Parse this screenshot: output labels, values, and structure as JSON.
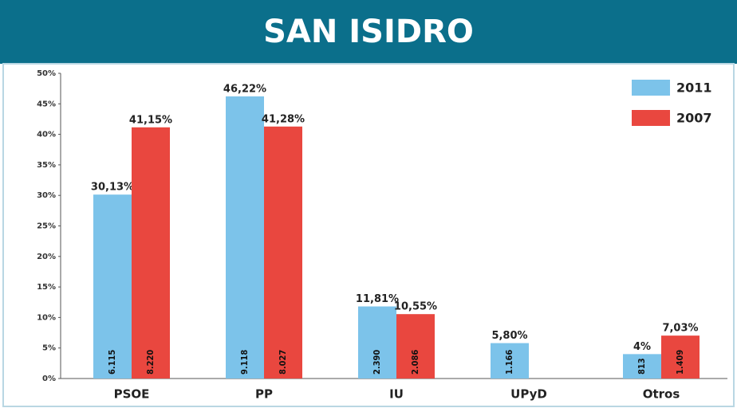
{
  "chart_data": {
    "type": "bar",
    "title": "SAN ISIDRO",
    "categories": [
      "PSOE",
      "PP",
      "IU",
      "UPyD",
      "Otros"
    ],
    "series": [
      {
        "name": "2011",
        "color": "#7cc3ea",
        "values": [
          30.13,
          46.22,
          11.81,
          5.8,
          4
        ],
        "value_labels": [
          "30,13%",
          "46,22%",
          "11,81%",
          "5,80%",
          "4%"
        ],
        "votes": [
          6115,
          9118,
          2390,
          1166,
          813
        ],
        "vote_labels": [
          "6.115",
          "9.118",
          "2.390",
          "1.166",
          "813"
        ]
      },
      {
        "name": "2007",
        "color": "#e9473f",
        "values": [
          41.15,
          41.28,
          10.55,
          null,
          7.03
        ],
        "value_labels": [
          "41,15%",
          "41,28%",
          "10,55%",
          null,
          "7,03%"
        ],
        "votes": [
          8220,
          8027,
          2086,
          null,
          1409
        ],
        "vote_labels": [
          "8.220",
          "8.027",
          "2.086",
          null,
          "1.409"
        ]
      }
    ],
    "ylim": [
      0,
      50
    ],
    "yticks": [
      {
        "value": 0,
        "label": "0%"
      },
      {
        "value": 5,
        "label": "5%"
      },
      {
        "value": 10,
        "label": "10%"
      },
      {
        "value": 15,
        "label": "15%"
      },
      {
        "value": 20,
        "label": "20%"
      },
      {
        "value": 25,
        "label": "25%"
      },
      {
        "value": 30,
        "label": "30%"
      },
      {
        "value": 35,
        "label": "35%"
      },
      {
        "value": 40,
        "label": "40%"
      },
      {
        "value": 45,
        "label": "45%"
      },
      {
        "value": 50,
        "label": "50%"
      }
    ],
    "legend": "upper right"
  }
}
